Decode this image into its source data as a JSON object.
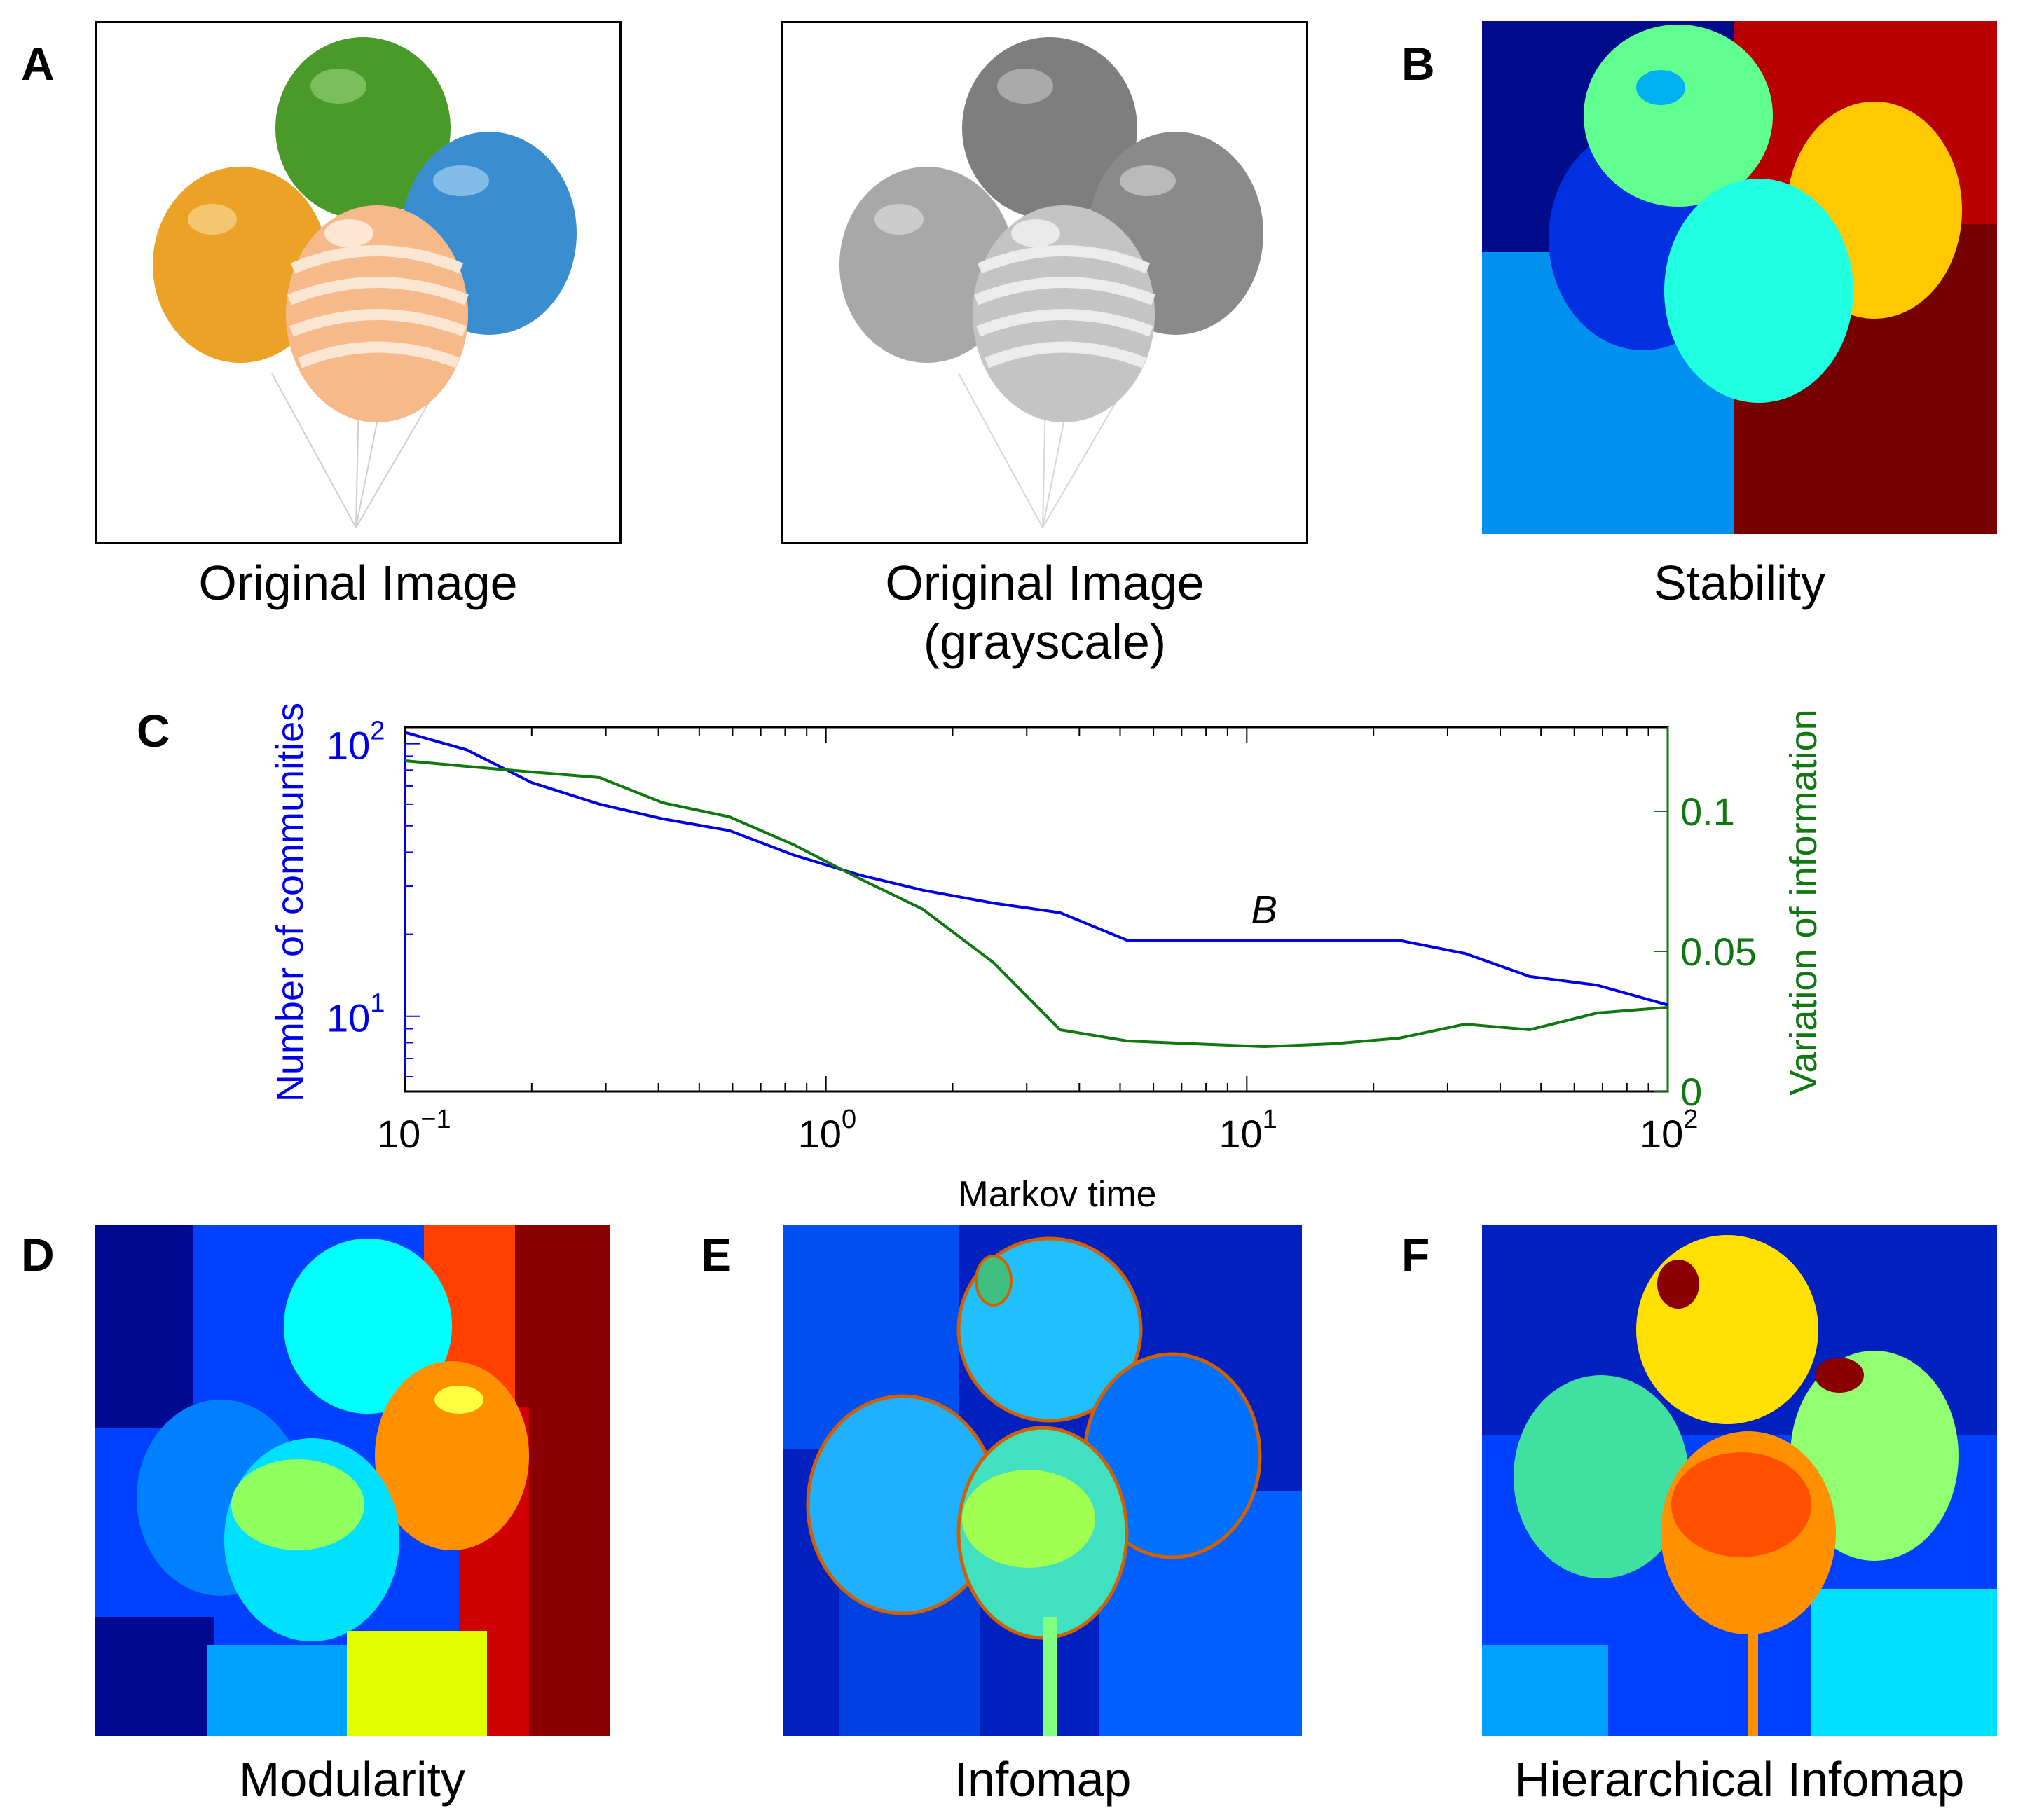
{
  "panels": {
    "A": {
      "letter": "A",
      "caption_original": "Original Image",
      "caption_gray_line1": "Original Image",
      "caption_gray_line2": "(grayscale)"
    },
    "B": {
      "letter": "B",
      "caption": "Stability"
    },
    "C": {
      "letter": "C"
    },
    "D": {
      "letter": "D",
      "caption": "Modularity"
    },
    "E": {
      "letter": "E",
      "caption": "Infomap"
    },
    "F": {
      "letter": "F",
      "caption": "Hierarchical Infomap"
    }
  },
  "colors": {
    "communities": "#0000e6",
    "variation": "#117711",
    "jet_dark_blue": "#00008f",
    "jet_blue": "#0040ff",
    "jet_light_blue": "#00a0ff",
    "jet_cyan": "#20ffe0",
    "jet_green": "#70ff90",
    "jet_yellow": "#ffd000",
    "jet_orange": "#ff6000",
    "jet_red": "#c00000",
    "jet_dark_red": "#800000"
  },
  "chart_data": {
    "type": "line",
    "xscale": "log",
    "xlabel": "Markov time",
    "xlim": [
      0.1,
      100
    ],
    "xticks": [
      {
        "base": "10",
        "exp": "−1",
        "value": 0.1
      },
      {
        "base": "10",
        "exp": "0",
        "value": 1
      },
      {
        "base": "10",
        "exp": "1",
        "value": 10
      },
      {
        "base": "10",
        "exp": "2",
        "value": 100
      }
    ],
    "left_axis": {
      "label": "Number of communities",
      "scale": "log",
      "ylim": [
        5.3,
        115
      ],
      "ticks": [
        {
          "base": "10",
          "exp": "1",
          "value": 10
        },
        {
          "base": "10",
          "exp": "2",
          "value": 100
        }
      ]
    },
    "right_axis": {
      "label": "Variation of information",
      "scale": "linear",
      "ylim": [
        0,
        0.13
      ],
      "ticks": [
        {
          "label": "0",
          "value": 0
        },
        {
          "label": "0.05",
          "value": 0.05
        },
        {
          "label": "0.1",
          "value": 0.1
        }
      ]
    },
    "annotation": {
      "text": "B",
      "x": 11,
      "y": 19
    },
    "series": [
      {
        "name": "Number of communities",
        "axis": "left",
        "x": [
          0.1,
          0.14,
          0.2,
          0.29,
          0.41,
          0.59,
          0.84,
          1.2,
          1.7,
          2.5,
          3.6,
          5.2,
          7.5,
          11,
          16,
          23,
          33,
          47,
          68,
          100
        ],
        "y": [
          110,
          95,
          72,
          60,
          53,
          48,
          39,
          33,
          29,
          26,
          24,
          19,
          19,
          19,
          19,
          19,
          17,
          14,
          13,
          11
        ]
      },
      {
        "name": "Variation of information",
        "axis": "right",
        "x": [
          0.1,
          0.14,
          0.2,
          0.29,
          0.41,
          0.59,
          0.84,
          1.2,
          1.7,
          2.5,
          3.6,
          5.2,
          7.5,
          11,
          16,
          23,
          33,
          47,
          68,
          100
        ],
        "y": [
          0.118,
          0.116,
          0.114,
          0.112,
          0.103,
          0.098,
          0.088,
          0.076,
          0.065,
          0.046,
          0.022,
          0.018,
          0.017,
          0.016,
          0.017,
          0.019,
          0.024,
          0.022,
          0.028,
          0.03
        ]
      }
    ]
  }
}
